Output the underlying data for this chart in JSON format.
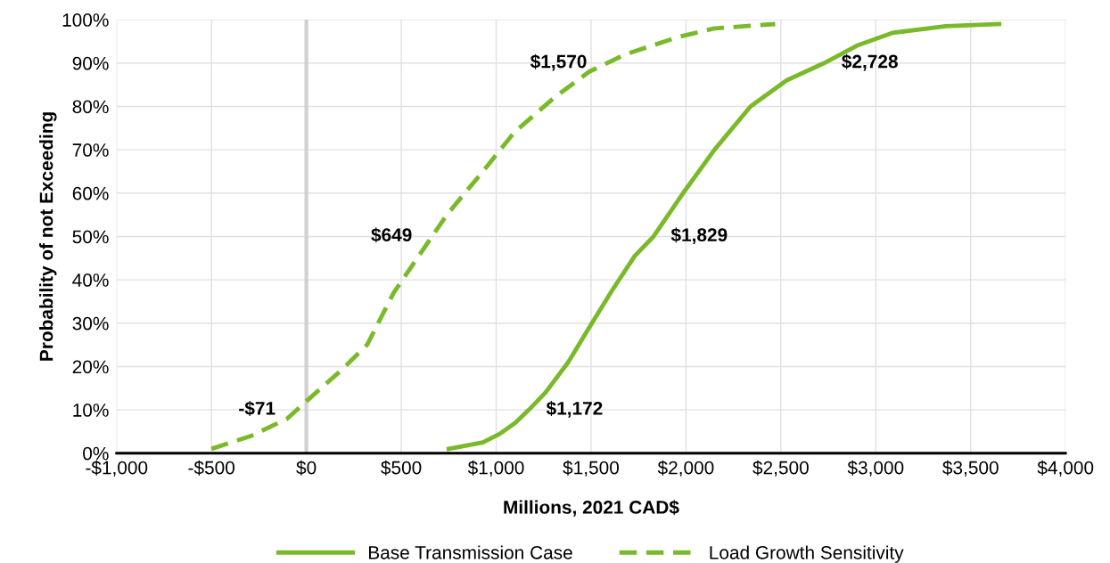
{
  "chart_data": {
    "type": "line",
    "xlabel": "Millions, 2021 CAD$",
    "ylabel": "Probability of not Exceeding",
    "xlim": [
      -1000,
      4000
    ],
    "xticks": [
      {
        "value": -1000,
        "label": "-$1,000"
      },
      {
        "value": -500,
        "label": "-$500"
      },
      {
        "value": 0,
        "label": "$0"
      },
      {
        "value": 500,
        "label": "$500"
      },
      {
        "value": 1000,
        "label": "$1,000"
      },
      {
        "value": 1500,
        "label": "$1,500"
      },
      {
        "value": 2000,
        "label": "$2,000"
      },
      {
        "value": 2500,
        "label": "$2,500"
      },
      {
        "value": 3000,
        "label": "$3,000"
      },
      {
        "value": 3500,
        "label": "$3,500"
      },
      {
        "value": 4000,
        "label": "$4,000"
      }
    ],
    "ylim": [
      0,
      100
    ],
    "yticks": [
      {
        "value": 0,
        "label": "0%"
      },
      {
        "value": 10,
        "label": "10%"
      },
      {
        "value": 20,
        "label": "20%"
      },
      {
        "value": 30,
        "label": "30%"
      },
      {
        "value": 40,
        "label": "40%"
      },
      {
        "value": 50,
        "label": "50%"
      },
      {
        "value": 60,
        "label": "60%"
      },
      {
        "value": 70,
        "label": "70%"
      },
      {
        "value": 80,
        "label": "80%"
      },
      {
        "value": 90,
        "label": "90%"
      },
      {
        "value": 100,
        "label": "100%"
      }
    ],
    "grid": true,
    "legend": "bottom",
    "marker": "none",
    "series": [
      {
        "name": "Base Transmission Case",
        "color": "#7ab929",
        "line_style": "solid",
        "x": [
          750,
          930,
          1020,
          1100,
          1172,
          1260,
          1380,
          1490,
          1610,
          1730,
          1829,
          1985,
          2150,
          2340,
          2530,
          2728,
          2900,
          3090,
          3370,
          3650
        ],
        "values": [
          1,
          2.5,
          4.5,
          7,
          10,
          14,
          21,
          29,
          37.5,
          45.5,
          50,
          60,
          70,
          80,
          86,
          90,
          94,
          97,
          98.5,
          99
        ]
      },
      {
        "name": "Load Growth Sensitivity",
        "color": "#7ab929",
        "line_style": "dashed",
        "x": [
          -500,
          -290,
          -100,
          0,
          180,
          320,
          460,
          600,
          740,
          930,
          1095,
          1305,
          1490,
          1680,
          1960,
          2150,
          2470
        ],
        "values": [
          1,
          4,
          8,
          12,
          19,
          25,
          37,
          46,
          55,
          65,
          74,
          82,
          88,
          92,
          96,
          98,
          99
        ]
      }
    ],
    "ref_lines": [
      {
        "axis": "x",
        "value": 0,
        "color": "#d0d0d0",
        "line_style": "solid"
      }
    ],
    "annotations": [
      {
        "text": "-$71",
        "x": -71,
        "y": 10
      },
      {
        "text": "$649",
        "x": 649,
        "y": 50
      },
      {
        "text": "$1,570",
        "x": 1570,
        "y": 90
      },
      {
        "text": "$1,172",
        "x": 1172,
        "y": 10
      },
      {
        "text": "$1,829",
        "x": 1829,
        "y": 50
      },
      {
        "text": "$2,728",
        "x": 2728,
        "y": 90
      }
    ]
  }
}
